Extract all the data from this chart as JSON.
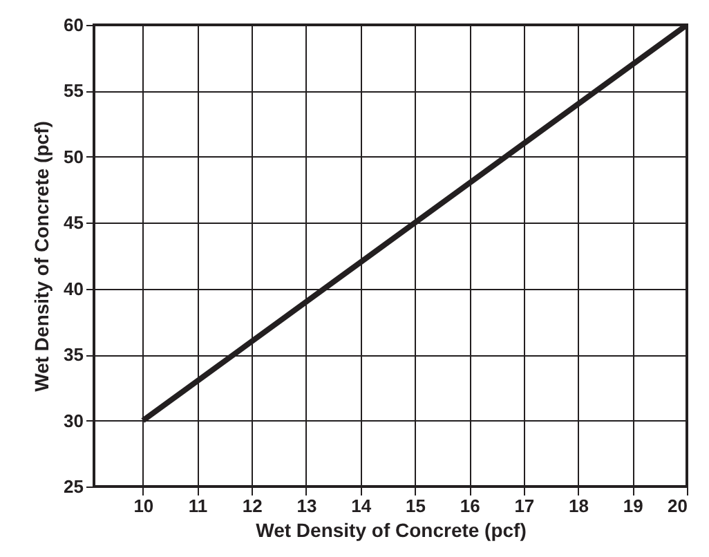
{
  "chart_data": {
    "type": "line",
    "xlabel": "Wet Density of Concrete (pcf)",
    "ylabel": "Wet Density of Concrete (pcf)",
    "x": [
      10,
      20
    ],
    "series": [
      {
        "color": "#231f20",
        "values": [
          30,
          60
        ]
      }
    ],
    "xlim": [
      9.1,
      20
    ],
    "xticks": [
      10,
      11,
      12,
      13,
      14,
      15,
      16,
      17,
      18,
      19,
      20
    ],
    "ylim": [
      25,
      60
    ],
    "yticks": [
      25,
      30,
      35,
      40,
      45,
      50,
      55,
      60
    ],
    "grid": true
  }
}
